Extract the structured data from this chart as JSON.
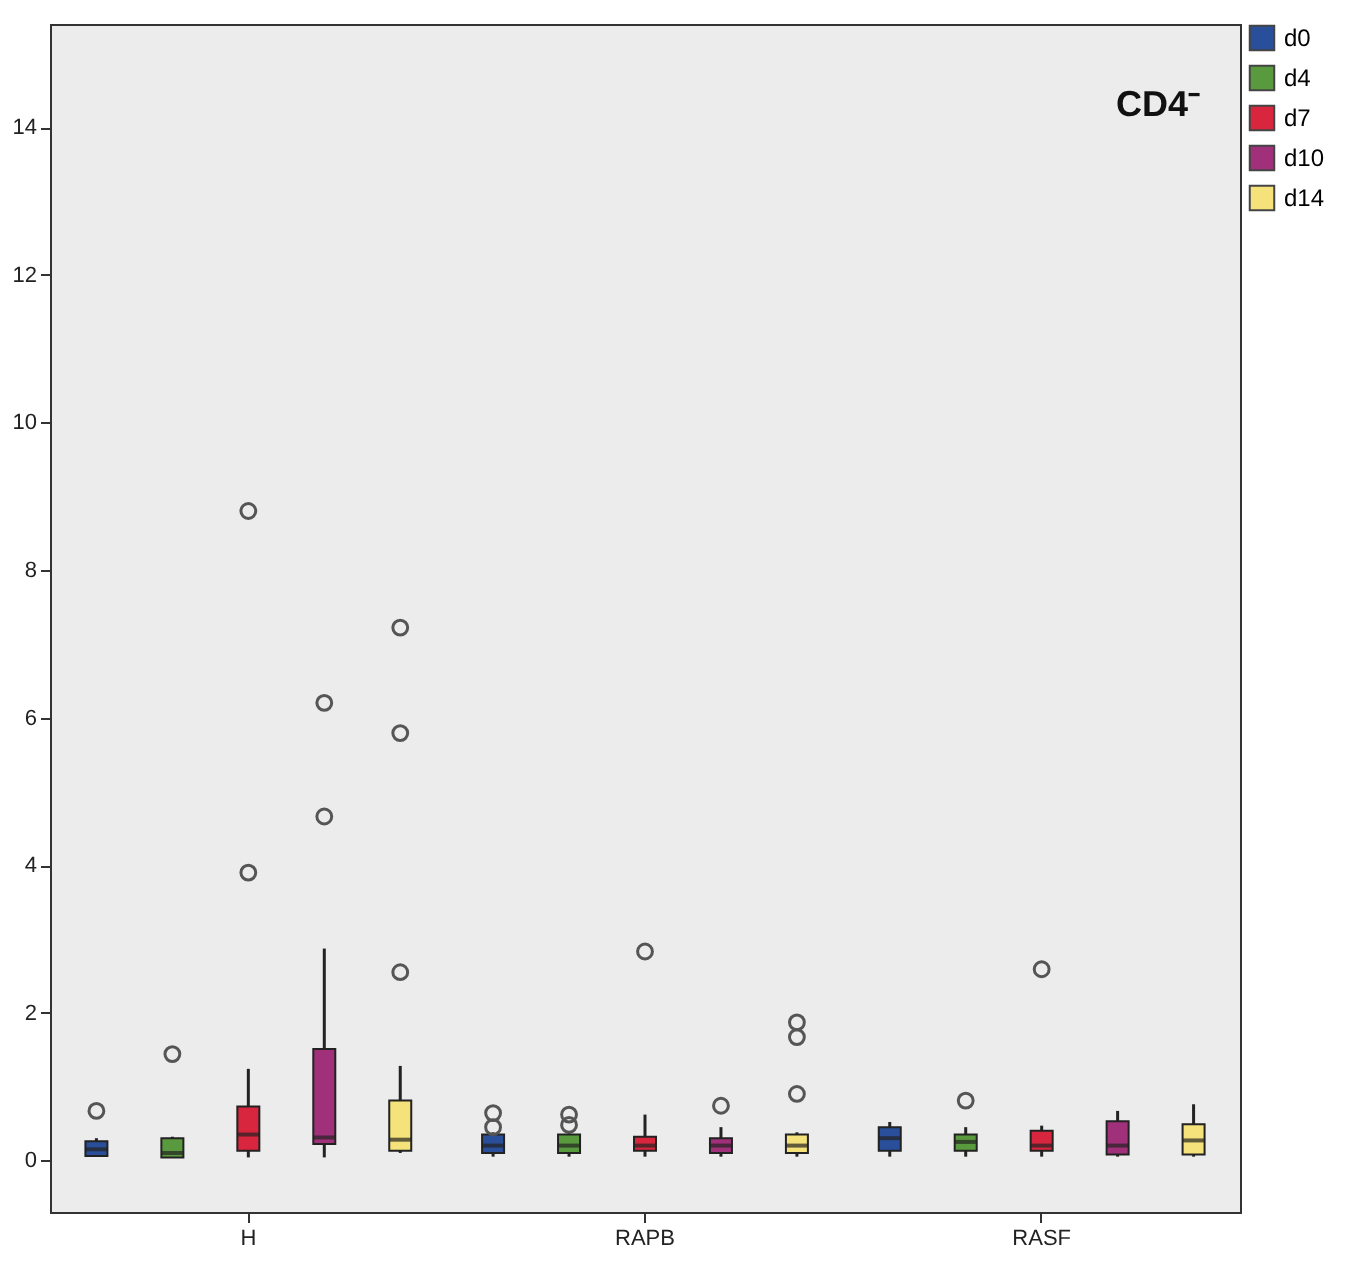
{
  "chart_data": {
    "type": "box",
    "title": "CD4⁻",
    "categories": [
      "H",
      "RAPB",
      "RASF"
    ],
    "ylim": [
      -0.7,
      15.4
    ],
    "yticks": [
      0,
      2,
      4,
      6,
      8,
      10,
      12,
      14
    ],
    "grid": false,
    "legend": "right",
    "marker": "circle",
    "series": [
      {
        "name": "d0",
        "color": "#2a4f9a",
        "boxes": [
          {
            "low": 0.05,
            "q1": 0.06,
            "median": 0.15,
            "q3": 0.26,
            "high": 0.3,
            "outliers": [
              0.67
            ]
          },
          {
            "low": 0.05,
            "q1": 0.1,
            "median": 0.2,
            "q3": 0.35,
            "high": 0.38,
            "outliers": [
              0.45,
              0.64
            ]
          },
          {
            "low": 0.05,
            "q1": 0.13,
            "median": 0.3,
            "q3": 0.45,
            "high": 0.52
          }
        ]
      },
      {
        "name": "d4",
        "color": "#5a9a3f",
        "boxes": [
          {
            "low": 0.04,
            "q1": 0.04,
            "median": 0.1,
            "q3": 0.3,
            "high": 0.32,
            "outliers": [
              1.44
            ]
          },
          {
            "low": 0.05,
            "q1": 0.1,
            "median": 0.2,
            "q3": 0.35,
            "high": 0.38,
            "outliers": [
              0.48,
              0.62
            ]
          },
          {
            "low": 0.05,
            "q1": 0.13,
            "median": 0.25,
            "q3": 0.35,
            "high": 0.45,
            "outliers": [
              0.81
            ]
          }
        ]
      },
      {
        "name": "d7",
        "color": "#d8263e",
        "boxes": [
          {
            "low": 0.04,
            "q1": 0.13,
            "median": 0.35,
            "q3": 0.73,
            "high": 1.24,
            "outliers": [
              3.9,
              8.8
            ]
          },
          {
            "low": 0.05,
            "q1": 0.13,
            "median": 0.2,
            "q3": 0.32,
            "high": 0.62,
            "outliers": [
              2.83
            ]
          },
          {
            "low": 0.05,
            "q1": 0.13,
            "median": 0.2,
            "q3": 0.4,
            "high": 0.47,
            "outliers": [
              2.59
            ]
          }
        ]
      },
      {
        "name": "d10",
        "color": "#a0307a",
        "boxes": [
          {
            "low": 0.04,
            "q1": 0.22,
            "median": 0.31,
            "q3": 1.51,
            "high": 2.87,
            "outliers": [
              4.66,
              6.2
            ]
          },
          {
            "low": 0.05,
            "q1": 0.1,
            "median": 0.2,
            "q3": 0.3,
            "high": 0.45,
            "outliers": [
              0.74
            ]
          },
          {
            "low": 0.05,
            "q1": 0.08,
            "median": 0.2,
            "q3": 0.53,
            "high": 0.67
          }
        ]
      },
      {
        "name": "d14",
        "color": "#f5e27a",
        "boxes": [
          {
            "low": 0.1,
            "q1": 0.13,
            "median": 0.28,
            "q3": 0.81,
            "high": 1.28,
            "outliers": [
              2.55,
              5.79,
              7.22
            ]
          },
          {
            "low": 0.05,
            "q1": 0.1,
            "median": 0.2,
            "q3": 0.35,
            "high": 0.38,
            "outliers": [
              0.9,
              1.67,
              1.87
            ]
          },
          {
            "low": 0.05,
            "q1": 0.08,
            "median": 0.27,
            "q3": 0.49,
            "high": 0.76
          }
        ]
      }
    ]
  }
}
